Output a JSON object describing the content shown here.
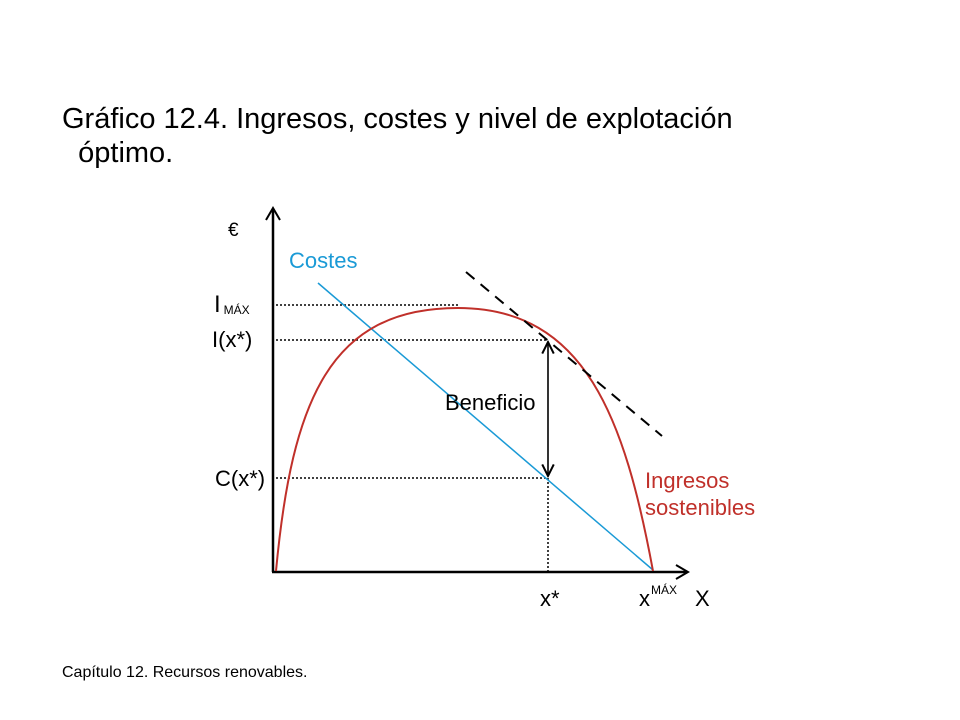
{
  "title_line1": "Gráfico 12.4. Ingresos, costes y nivel de explotación",
  "title_line2": "óptimo.",
  "footer": "Capítulo 12. Recursos renovables.",
  "labels": {
    "euro": "€",
    "costes": "Costes",
    "i_max_main": "I",
    "i_max_sub": "MÁX",
    "i_xstar": "I(x*)",
    "c_xstar": "C(x*)",
    "beneficio": "Beneficio",
    "ingresos_line1": "Ingresos",
    "ingresos_line2": "sostenibles",
    "x_star": "x*",
    "x_max_main": "x",
    "x_max_sup": "MÁX",
    "x_axis": "X"
  },
  "colors": {
    "costes": "#1a9ad6",
    "ingresos": "#c0302a",
    "axis": "#000000"
  }
}
